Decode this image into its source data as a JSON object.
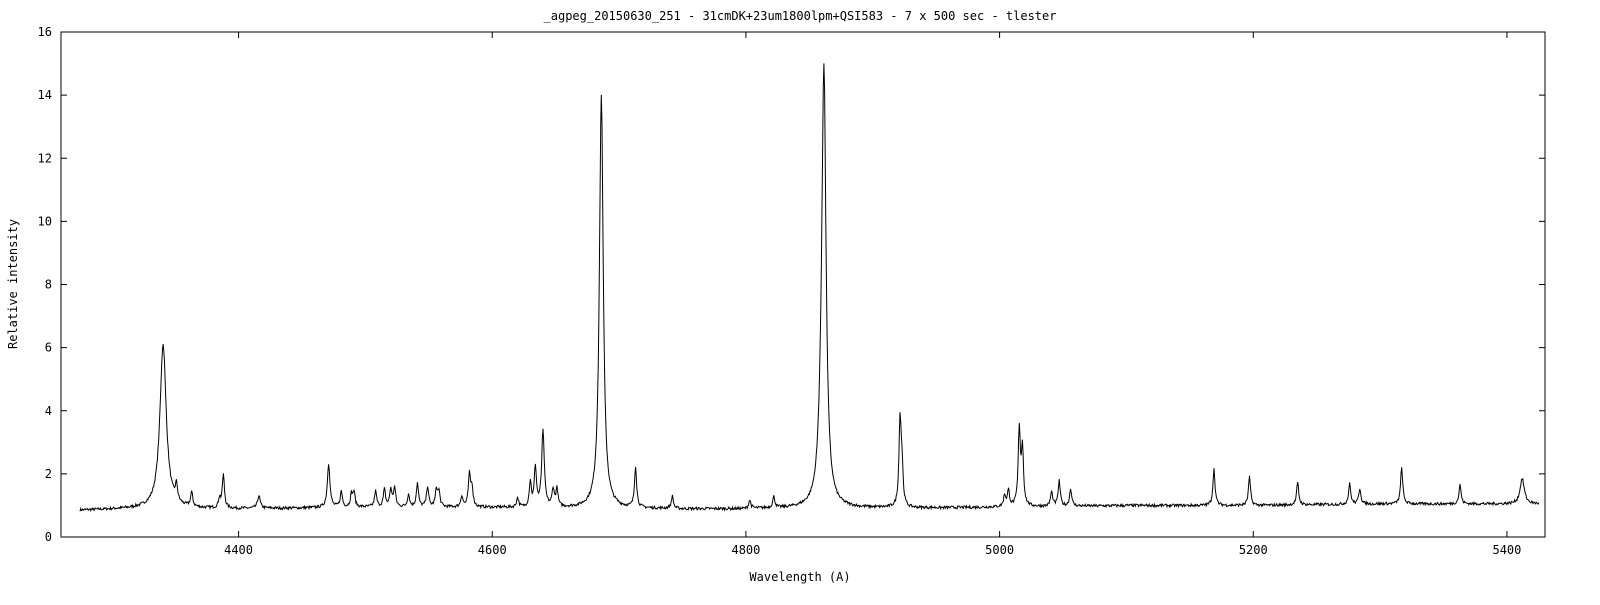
{
  "chart_data": {
    "type": "line",
    "title": "_agpeg_20150630_251 - 31cmDK+23um1800lpm+QSI583 - 7 x 500 sec - tlester",
    "xlabel": "Wavelength (A)",
    "ylabel": "Relative intensity",
    "xlim": [
      4260,
      5430
    ],
    "ylim": [
      0,
      16
    ],
    "xticks": [
      4400,
      4600,
      4800,
      5000,
      5200,
      5400
    ],
    "yticks": [
      0,
      2,
      4,
      6,
      8,
      10,
      12,
      14,
      16
    ],
    "grid": false,
    "legend": "none",
    "line_color": "#000000",
    "series": [
      {
        "continuum": [
          [
            4275,
            0.85
          ],
          [
            4320,
            0.9
          ],
          [
            4400,
            0.9
          ],
          [
            4500,
            0.95
          ],
          [
            4600,
            0.95
          ],
          [
            4700,
            0.9
          ],
          [
            4800,
            0.9
          ],
          [
            4900,
            0.92
          ],
          [
            5000,
            0.95
          ],
          [
            5100,
            1.0
          ],
          [
            5200,
            1.0
          ],
          [
            5300,
            1.05
          ],
          [
            5425,
            1.05
          ]
        ],
        "lines": [
          [
            4340.5,
            5.2,
            3.0
          ],
          [
            4351,
            0.5,
            1.0
          ],
          [
            4363,
            0.45,
            1.0
          ],
          [
            4385,
            0.3,
            1.0
          ],
          [
            4388,
            1.05,
            1.0
          ],
          [
            4416,
            0.4,
            1.2
          ],
          [
            4471,
            1.4,
            1.2
          ],
          [
            4481,
            0.5,
            1.0
          ],
          [
            4489,
            0.4,
            1.0
          ],
          [
            4491,
            0.45,
            1.0
          ],
          [
            4508,
            0.5,
            1.0
          ],
          [
            4515,
            0.55,
            1.0
          ],
          [
            4520,
            0.55,
            1.0
          ],
          [
            4523,
            0.6,
            1.0
          ],
          [
            4534,
            0.4,
            1.0
          ],
          [
            4541,
            0.75,
            1.0
          ],
          [
            4549,
            0.65,
            1.0
          ],
          [
            4556,
            0.55,
            1.0
          ],
          [
            4558,
            0.45,
            1.0
          ],
          [
            4576,
            0.35,
            1.0
          ],
          [
            4582,
            1.0,
            1.0
          ],
          [
            4584,
            0.6,
            1.0
          ],
          [
            4620,
            0.3,
            1.0
          ],
          [
            4630,
            0.8,
            1.0
          ],
          [
            4634,
            1.25,
            1.0
          ],
          [
            4640,
            2.4,
            1.2
          ],
          [
            4648,
            0.55,
            1.0
          ],
          [
            4651,
            0.55,
            1.0
          ],
          [
            4686,
            13.1,
            1.8
          ],
          [
            4713,
            1.3,
            1.0
          ],
          [
            4742,
            0.4,
            1.0
          ],
          [
            4803,
            0.25,
            1.0
          ],
          [
            4822,
            0.35,
            1.0
          ],
          [
            4859,
            1.0,
            2.5
          ],
          [
            4861.5,
            13.6,
            2.0
          ],
          [
            4921.5,
            2.7,
            1.0
          ],
          [
            4923,
            1.2,
            1.0
          ],
          [
            5004,
            0.35,
            1.0
          ],
          [
            5007,
            0.5,
            1.0
          ],
          [
            5015.5,
            2.4,
            1.0
          ],
          [
            5018,
            1.8,
            1.0
          ],
          [
            5041,
            0.45,
            1.0
          ],
          [
            5047,
            0.8,
            1.0
          ],
          [
            5056,
            0.55,
            1.0
          ],
          [
            5169,
            1.15,
            1.0
          ],
          [
            5197,
            0.9,
            1.0
          ],
          [
            5235,
            0.7,
            1.0
          ],
          [
            5276,
            0.65,
            1.0
          ],
          [
            5284,
            0.5,
            1.0
          ],
          [
            5317,
            1.15,
            1.0
          ],
          [
            5363,
            0.6,
            1.0
          ],
          [
            5412,
            0.8,
            2.0
          ]
        ]
      }
    ]
  }
}
